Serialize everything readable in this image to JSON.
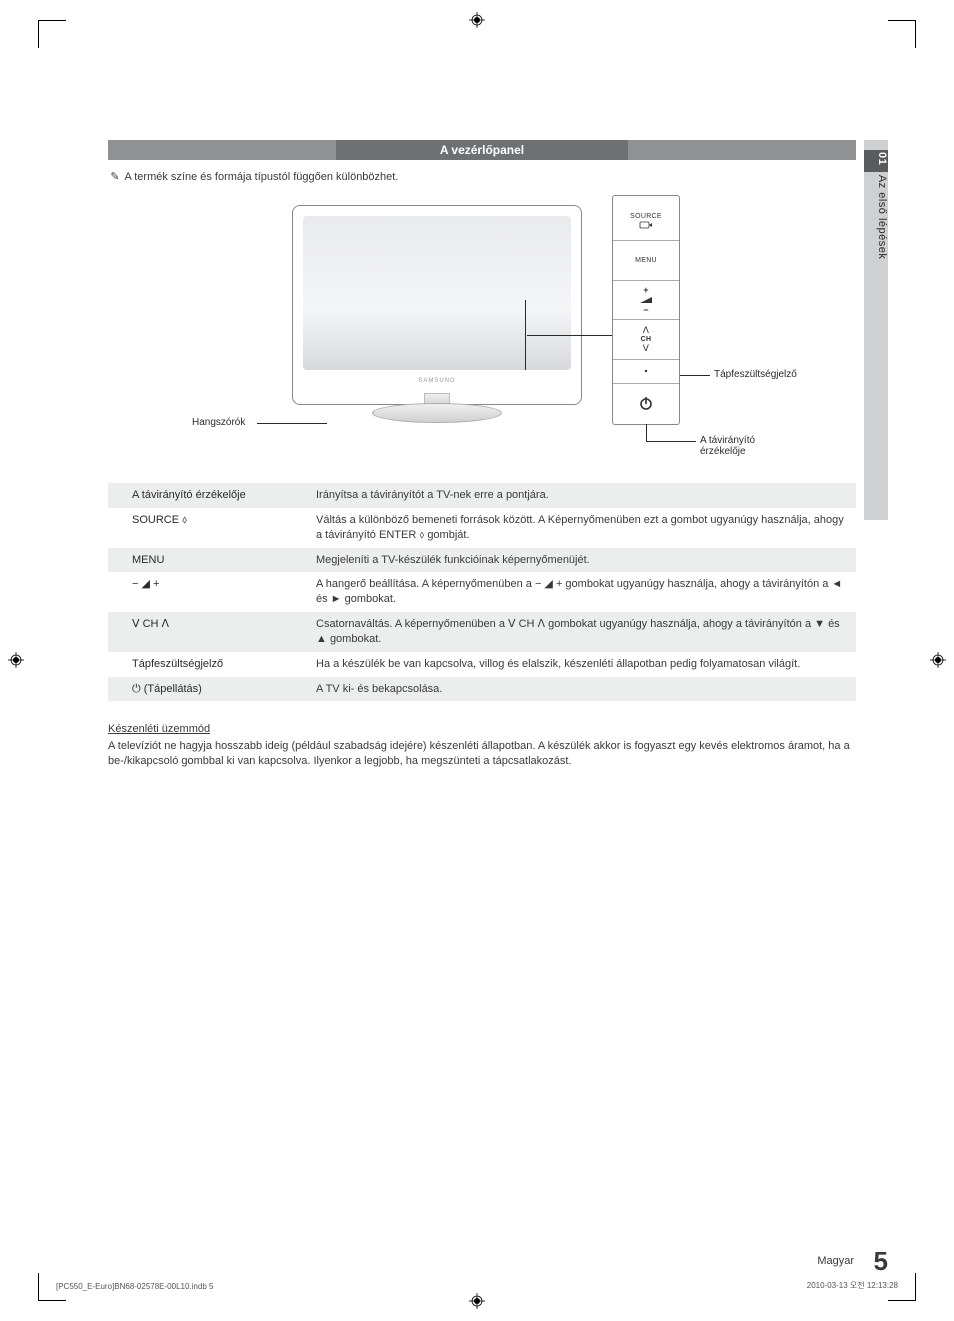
{
  "colors": {
    "header_side": "#8f9194",
    "header_mid": "#6e7073",
    "header_text": "#ffffff",
    "tab_grey": "#cfd0d2",
    "tab_dark": "#5a5b5d",
    "row_shade": "#eceded",
    "body_text": "#3a3a3a",
    "line": "#2a2a2a"
  },
  "tab": {
    "number": "01",
    "label": "Az első lépések"
  },
  "header": {
    "title": "A vezérlőpanel"
  },
  "note": {
    "icon": "✎",
    "text": "A termék színe és formája típustól függően különbözhet."
  },
  "diagram": {
    "brand": "SAMSUNG",
    "speaker_label": "Hangszórók",
    "power_indicator_label": "Tápfeszültségjelző",
    "remote_sensor_label": "A távirányító érzékelője",
    "buttons": {
      "source": "SOURCE",
      "menu": "MENU",
      "vol_plus": "+",
      "vol_minus": "−",
      "ch_up": "ᐱ",
      "ch": "CH",
      "ch_down": "ᐯ"
    }
  },
  "table": {
    "rows": [
      {
        "shade": true,
        "left": "A távirányító érzékelője",
        "right": "Irányítsa a távirányítót a TV-nek erre a pontjára."
      },
      {
        "shade": false,
        "left": "SOURCE ⬨",
        "right": "Váltás a különböző bemeneti források között. A Képernyőmenüben ezt a gombot ugyanúgy használja, ahogy a távirányító ENTER ⬨ gombját."
      },
      {
        "shade": true,
        "left": "MENU",
        "right": "Megjeleníti a TV-készülék funkcióinak képernyőmenüjét."
      },
      {
        "shade": false,
        "left": "− ◢ +",
        "right": "A hangerő beállítása. A képernyőmenüben a − ◢ + gombokat ugyanúgy használja, ahogy a távirányítón a ◄ és ► gombokat."
      },
      {
        "shade": true,
        "left": "ᐯ CH ᐱ",
        "right": "Csatornaváltás. A képernyőmenüben a ᐯ CH ᐱ gombokat ugyanúgy használja, ahogy a távirányítón a ▼ és ▲ gombokat."
      },
      {
        "shade": false,
        "left": "Tápfeszültségjelző",
        "right": "Ha a készülék be van kapcsolva, villog és elalszik, készenléti állapotban pedig folyamatosan világít."
      },
      {
        "shade": true,
        "left": "⏻ (Tápellátás)",
        "right": "A TV ki- és bekapcsolása."
      }
    ]
  },
  "standby": {
    "heading": "Készenléti üzemmód",
    "body": "A televíziót ne hagyja hosszabb ideig (például szabadság idejére) készenléti állapotban. A készülék akkor is fogyaszt egy kevés elektromos áramot, ha a be-/kikapcsoló gombbal ki van kapcsolva. Ilyenkor a legjobb, ha megszünteti a tápcsatlakozást."
  },
  "footer": {
    "lang": "Magyar",
    "page": "5",
    "left": "[PC550_E-Euro]BN68-02578E-00L10.indb   5",
    "right": "2010-03-13   오전 12:13:28"
  }
}
